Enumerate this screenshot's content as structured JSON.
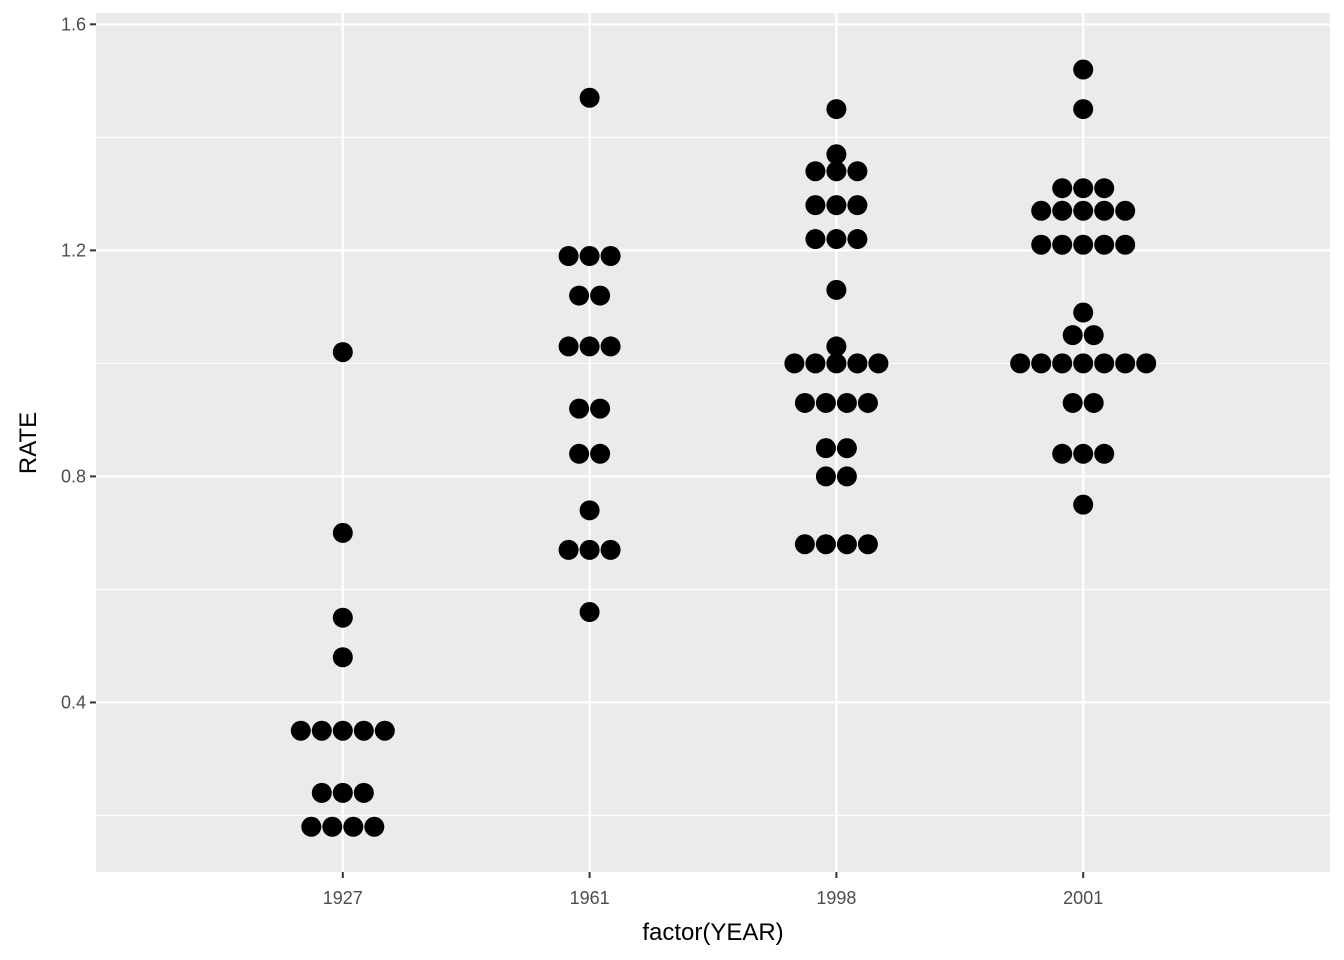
{
  "chart_data": {
    "type": "scatter",
    "subtype": "dotplot",
    "title": "",
    "xlabel": "factor(YEAR)",
    "ylabel": "RATE",
    "categories": [
      "1927",
      "1961",
      "1998",
      "2001"
    ],
    "ylim": [
      0.1,
      1.62
    ],
    "yticks": [
      0.4,
      0.8,
      1.2,
      1.6
    ],
    "ytick_labels": [
      "0.4",
      "0.8",
      "1.2",
      "1.6"
    ],
    "grid": true,
    "panel_background": "#ebebeb",
    "grid_color": "#ffffff",
    "point_color": "#000000",
    "series": [
      {
        "category": "1927",
        "values": [
          1.02,
          0.7,
          0.55,
          0.48,
          0.35,
          0.35,
          0.35,
          0.35,
          0.35,
          0.24,
          0.24,
          0.24,
          0.18,
          0.18,
          0.18,
          0.18
        ]
      },
      {
        "category": "1961",
        "values": [
          1.47,
          1.19,
          1.19,
          1.19,
          1.12,
          1.12,
          1.03,
          1.03,
          1.03,
          0.92,
          0.92,
          0.84,
          0.84,
          0.74,
          0.67,
          0.67,
          0.67,
          0.56
        ]
      },
      {
        "category": "1998",
        "values": [
          1.45,
          1.37,
          1.34,
          1.34,
          1.34,
          1.28,
          1.28,
          1.28,
          1.22,
          1.22,
          1.22,
          1.13,
          1.03,
          1.0,
          1.0,
          1.0,
          1.0,
          1.0,
          0.93,
          0.93,
          0.93,
          0.93,
          0.85,
          0.85,
          0.8,
          0.8,
          0.68,
          0.68,
          0.68,
          0.68
        ]
      },
      {
        "category": "2001",
        "values": [
          1.52,
          1.45,
          1.31,
          1.31,
          1.31,
          1.27,
          1.27,
          1.27,
          1.27,
          1.27,
          1.21,
          1.21,
          1.21,
          1.21,
          1.21,
          1.09,
          1.05,
          1.05,
          1.0,
          1.0,
          1.0,
          1.0,
          1.0,
          1.0,
          1.0,
          0.93,
          0.93,
          0.84,
          0.84,
          0.84,
          0.75
        ]
      }
    ]
  }
}
